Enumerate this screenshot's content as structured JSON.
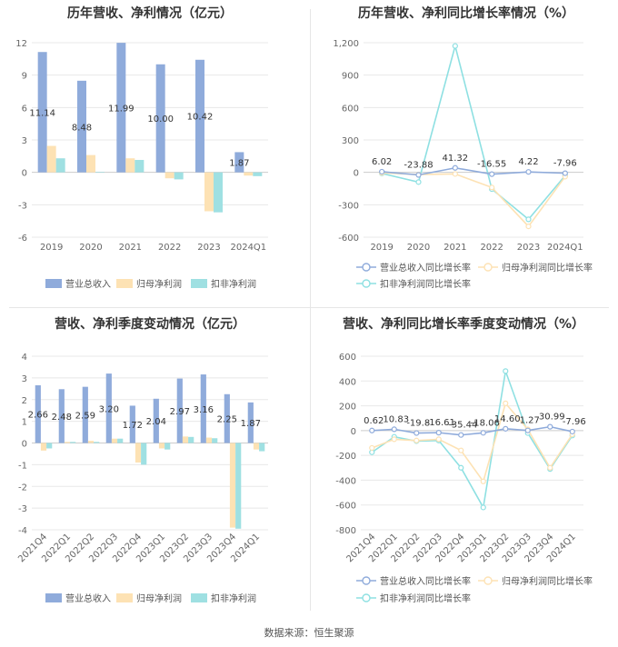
{
  "colors": {
    "revenue": "#8fabdb",
    "net_profit": "#fde2b4",
    "deducted_profit": "#9fe0e2",
    "line_revenue": "#8fabdb",
    "line_net": "#fde2b4",
    "line_deducted": "#8ee0e2",
    "grid": "#e8e8e8",
    "axis_text": "#666666",
    "title_text": "#333333"
  },
  "source": "数据来源：恒生聚源",
  "chart_data": [
    {
      "id": "annual_value",
      "type": "bar",
      "title": "历年营收、净利情况（亿元）",
      "categories": [
        "2019",
        "2020",
        "2021",
        "2022",
        "2023",
        "2024Q1"
      ],
      "ylim": [
        -6,
        12
      ],
      "yticks": [
        -6,
        -3,
        0,
        3,
        6,
        9,
        12
      ],
      "series": [
        {
          "name": "营业总收入",
          "values": [
            11.14,
            8.48,
            11.99,
            10.0,
            10.42,
            1.87
          ],
          "labels": [
            "11.14",
            "8.48",
            "11.99",
            "10.00",
            "10.42",
            "1.87"
          ]
        },
        {
          "name": "归母净利润",
          "values": [
            2.45,
            1.6,
            1.3,
            -0.55,
            -3.6,
            -0.3
          ]
        },
        {
          "name": "扣非净利润",
          "values": [
            1.3,
            0.05,
            1.15,
            -0.65,
            -3.7,
            -0.35
          ]
        }
      ]
    },
    {
      "id": "annual_growth",
      "type": "line",
      "title": "历年营收、净利同比增长率情况（%）",
      "categories": [
        "2019",
        "2020",
        "2021",
        "2022",
        "2023",
        "2024Q1"
      ],
      "ylim": [
        -600,
        1200
      ],
      "yticks": [
        -600,
        -300,
        0,
        300,
        600,
        900,
        1200
      ],
      "ytick_labels": [
        "-600",
        "-300",
        "0",
        "300",
        "600",
        "900",
        "1,200"
      ],
      "series": [
        {
          "name": "营业总收入同比增长率",
          "values": [
            6.02,
            -23.88,
            41.32,
            -16.55,
            4.22,
            -7.96
          ],
          "labels": [
            "6.02",
            "-23.88",
            "41.32",
            "-16.55",
            "4.22",
            "-7.96"
          ]
        },
        {
          "name": "归母净利润同比增长率",
          "values": [
            -5,
            -20,
            -15,
            -140,
            -500,
            -40
          ]
        },
        {
          "name": "扣非净利润同比增长率",
          "values": [
            -10,
            -90,
            1170,
            -155,
            -435,
            -30
          ]
        }
      ]
    },
    {
      "id": "quarterly_value",
      "type": "bar",
      "title": "营收、净利季度变动情况（亿元）",
      "categories": [
        "2021Q4",
        "2022Q1",
        "2022Q2",
        "2022Q3",
        "2022Q4",
        "2023Q1",
        "2023Q2",
        "2023Q3",
        "2023Q4",
        "2024Q1"
      ],
      "ylim": [
        -4,
        4
      ],
      "yticks": [
        -4,
        -3,
        -2,
        -1,
        0,
        1,
        2,
        3,
        4
      ],
      "series": [
        {
          "name": "营业总收入",
          "values": [
            2.66,
            2.48,
            2.59,
            3.2,
            1.72,
            2.04,
            2.97,
            3.16,
            2.25,
            1.87
          ],
          "labels": [
            "2.66",
            "2.48",
            "2.59",
            "3.20",
            "1.72",
            "2.04",
            "2.97",
            "3.16",
            "2.25",
            "1.87"
          ]
        },
        {
          "name": "归母净利润",
          "values": [
            -0.35,
            0.05,
            0.1,
            0.2,
            -0.9,
            -0.25,
            0.3,
            0.25,
            -3.9,
            -0.3
          ]
        },
        {
          "name": "扣非净利润",
          "values": [
            -0.25,
            0.05,
            0.05,
            0.2,
            -1.0,
            -0.3,
            0.28,
            0.22,
            -3.95,
            -0.38
          ]
        }
      ]
    },
    {
      "id": "quarterly_growth",
      "type": "line",
      "title": "营收、净利同比增长率季度变动情况（%）",
      "categories": [
        "2021Q4",
        "2022Q1",
        "2022Q2",
        "2022Q3",
        "2022Q4",
        "2023Q1",
        "2023Q2",
        "2023Q3",
        "2023Q4",
        "2024Q1"
      ],
      "ylim": [
        -800,
        600
      ],
      "yticks": [
        -800,
        -600,
        -400,
        -200,
        0,
        200,
        400,
        600
      ],
      "series": [
        {
          "name": "营业总收入同比增长率",
          "values": [
            0.62,
            10.83,
            -19.8,
            -16.61,
            -35.44,
            -18.06,
            14.6,
            1.27,
            30.99,
            -7.96
          ],
          "labels": [
            "0.62",
            "10.83",
            "-19.8",
            "-16.61",
            "-35.44",
            "-18.06",
            "14.60",
            "1.27",
            "30.99",
            "-7.96"
          ]
        },
        {
          "name": "归母净利润同比增长率",
          "values": [
            -140,
            -70,
            -80,
            -70,
            -160,
            -410,
            220,
            10,
            -300,
            -30
          ]
        },
        {
          "name": "扣非净利润同比增长率",
          "values": [
            -175,
            -50,
            -85,
            -80,
            -300,
            -620,
            480,
            -20,
            -310,
            -40
          ]
        }
      ]
    }
  ]
}
